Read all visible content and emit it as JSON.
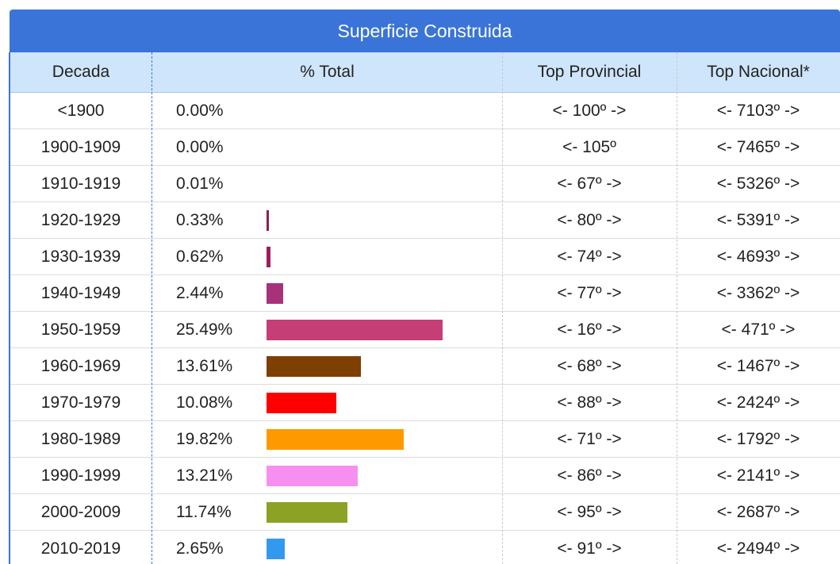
{
  "title": "Superficie Construida",
  "table": {
    "headers": [
      "Decada",
      "% Total",
      "Top Provincial",
      "Top Nacional*"
    ],
    "rows": [
      {
        "decade": "<1900",
        "pct": 0.0,
        "pct_label": "0.00%",
        "provincial": "<- 100º ->",
        "national": "<- 7103º ->"
      },
      {
        "decade": "1900-1909",
        "pct": 0.0,
        "pct_label": "0.00%",
        "provincial": "<- 105º",
        "national": "<- 7465º ->"
      },
      {
        "decade": "1910-1919",
        "pct": 0.01,
        "pct_label": "0.01%",
        "provincial": "<- 67º ->",
        "national": "<- 5326º ->"
      },
      {
        "decade": "1920-1929",
        "pct": 0.33,
        "pct_label": "0.33%",
        "provincial": "<- 80º ->",
        "national": "<- 5391º ->",
        "color": "#8c1f55"
      },
      {
        "decade": "1930-1939",
        "pct": 0.62,
        "pct_label": "0.62%",
        "provincial": "<- 74º ->",
        "national": "<- 4693º ->",
        "color": "#9a1f5e"
      },
      {
        "decade": "1940-1949",
        "pct": 2.44,
        "pct_label": "2.44%",
        "provincial": "<- 77º ->",
        "national": "<- 3362º ->",
        "color": "#a8327a"
      },
      {
        "decade": "1950-1959",
        "pct": 25.49,
        "pct_label": "25.49%",
        "provincial": "<- 16º ->",
        "national": "<- 471º ->",
        "color": "#c63e76"
      },
      {
        "decade": "1960-1969",
        "pct": 13.61,
        "pct_label": "13.61%",
        "provincial": "<- 68º ->",
        "national": "<- 1467º ->",
        "color": "#7f3f00"
      },
      {
        "decade": "1970-1979",
        "pct": 10.08,
        "pct_label": "10.08%",
        "provincial": "<- 88º ->",
        "national": "<- 2424º ->",
        "color": "#ff0000"
      },
      {
        "decade": "1980-1989",
        "pct": 19.82,
        "pct_label": "19.82%",
        "provincial": "<- 71º ->",
        "national": "<- 1792º ->",
        "color": "#ff9900"
      },
      {
        "decade": "1990-1999",
        "pct": 13.21,
        "pct_label": "13.21%",
        "provincial": "<- 86º ->",
        "national": "<- 2141º ->",
        "color": "#f78ff0"
      },
      {
        "decade": "2000-2009",
        "pct": 11.74,
        "pct_label": "11.74%",
        "provincial": "<- 95º ->",
        "national": "<- 2687º ->",
        "color": "#8ba226"
      },
      {
        "decade": "2010-2019",
        "pct": 2.65,
        "pct_label": "2.65%",
        "provincial": "<- 91º ->",
        "national": "<- 2494º ->",
        "color": "#3399ee"
      }
    ]
  }
}
